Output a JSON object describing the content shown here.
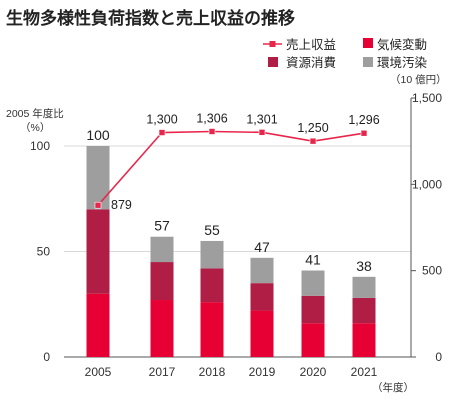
{
  "chart_data": {
    "type": "bar",
    "title": "生物多様性負荷指数と売上収益の推移",
    "categories": [
      "2005",
      "2017",
      "2018",
      "2019",
      "2020",
      "2021"
    ],
    "left_axis": {
      "unit_label_1": "2005 年度比",
      "unit_label_2": "（%）",
      "ylim": [
        0,
        100
      ],
      "ticks": [
        0,
        50,
        100
      ]
    },
    "right_axis": {
      "unit_label": "（10 億円）",
      "ylim": [
        0,
        1500
      ],
      "ticks": [
        0,
        500,
        "1,000",
        "1,500"
      ],
      "tick_values": [
        0,
        500,
        1000,
        1500
      ]
    },
    "x_unit_label": "（年度）",
    "series": [
      {
        "name": "気候変動",
        "color": "#e60033",
        "values": [
          30,
          27,
          26,
          22,
          16,
          16
        ]
      },
      {
        "name": "資源消費",
        "color": "#b01e45",
        "values": [
          40,
          18,
          16,
          13,
          13,
          12
        ]
      },
      {
        "name": "環境汚染",
        "color": "#9e9e9e",
        "values": [
          30,
          12,
          13,
          12,
          12,
          10
        ]
      }
    ],
    "totals": [
      100,
      57,
      55,
      47,
      41,
      38
    ],
    "line": {
      "name": "売上収益",
      "color": "#e8264b",
      "values": [
        879,
        1300,
        1306,
        1301,
        1250,
        1296
      ],
      "labels": [
        "879",
        "1,300",
        "1,306",
        "1,301",
        "1,250",
        "1,296"
      ]
    },
    "legend_order": [
      "売上収益",
      "気候変動",
      "資源消費",
      "環境汚染"
    ]
  }
}
